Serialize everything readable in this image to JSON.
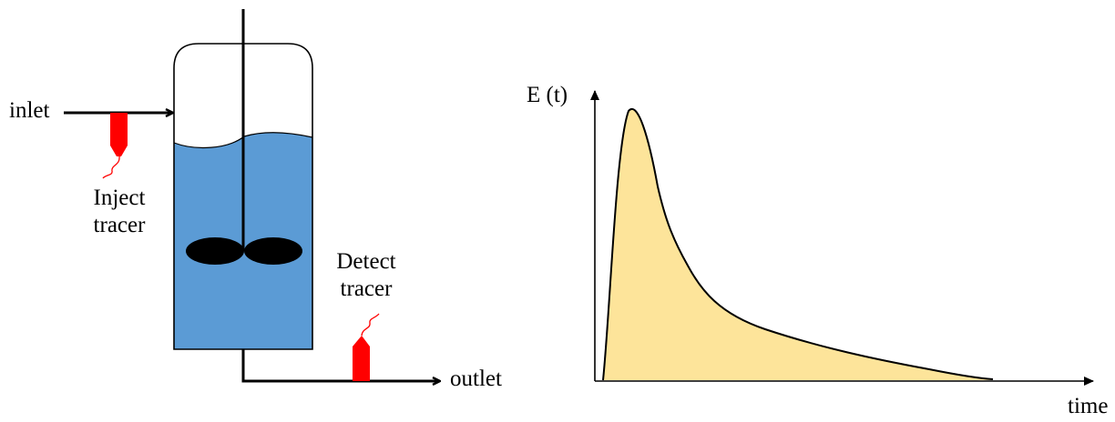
{
  "reactor": {
    "inlet_label": "inlet",
    "outlet_label": "outlet",
    "inject_label_line1": "Inject",
    "inject_label_line2": "tracer",
    "detect_label_line1": "Detect",
    "detect_label_line2": "tracer"
  },
  "plot": {
    "y_axis_label": "E (t)",
    "x_axis_label": "time"
  },
  "colors": {
    "liquid": "#5b9bd5",
    "tracer": "#ff0000",
    "curve_fill": "#fde49a",
    "line": "#000000"
  }
}
